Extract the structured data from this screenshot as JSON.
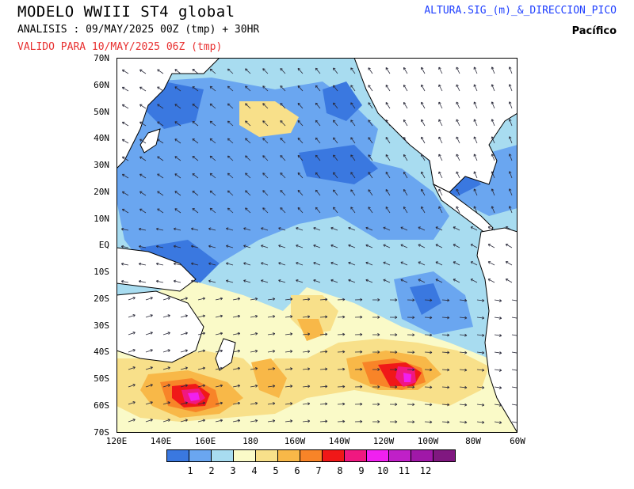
{
  "header": {
    "title": "MODELO WWIII ST4 global",
    "analysis": "ANALISIS : 09/MAY/2025 00Z  (tmp) + 30HR",
    "valid": "VALIDO PARA  10/MAY/2025 06Z  (tmp)",
    "variable": "ALTURA.SIG_(m)_&_DIRECCION_PICO",
    "region": "Pacífico"
  },
  "axes": {
    "lat_labels": [
      "70N",
      "60N",
      "50N",
      "40N",
      "30N",
      "20N",
      "10N",
      "EQ",
      "10S",
      "20S",
      "30S",
      "40S",
      "50S",
      "60S",
      "70S"
    ],
    "lon_labels": [
      "120E",
      "140E",
      "160E",
      "180",
      "160W",
      "140W",
      "120W",
      "100W",
      "80W",
      "60W"
    ]
  },
  "colorbar": {
    "colors": [
      "#3a78e0",
      "#6aa6f0",
      "#a8dcf0",
      "#fafac8",
      "#f8e08a",
      "#f8b848",
      "#f88428",
      "#f01818",
      "#f01880",
      "#f020f0",
      "#c020c8",
      "#a018a8",
      "#801880"
    ],
    "labels": [
      "1",
      "2",
      "3",
      "4",
      "5",
      "6",
      "7",
      "8",
      "9",
      "10",
      "11",
      "12"
    ]
  },
  "map_colors": {
    "ocean_base": "#a8dcf0",
    "land": "#ffffff",
    "border": "#000000"
  }
}
